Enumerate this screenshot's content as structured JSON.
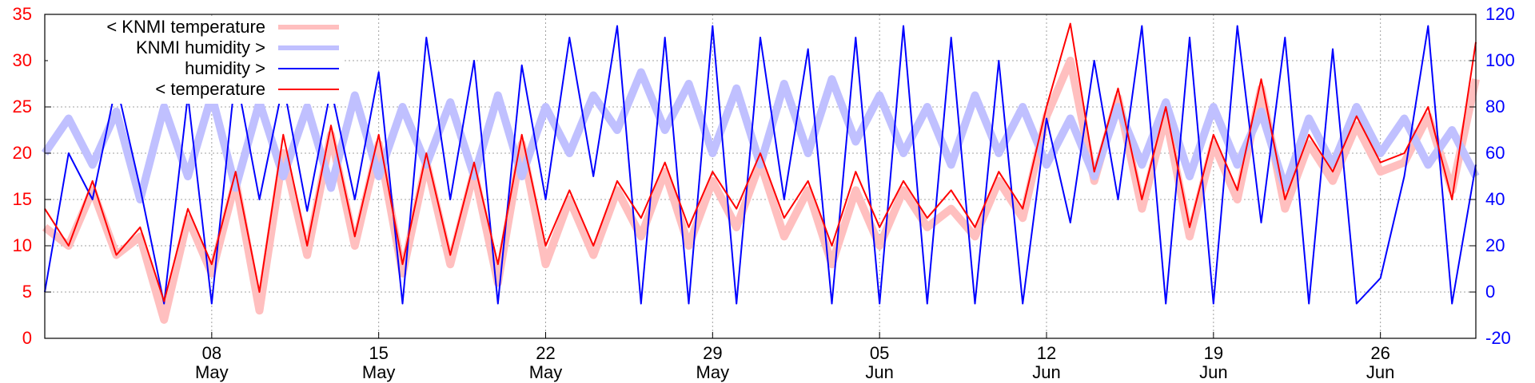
{
  "chart_data": {
    "type": "line",
    "title": "",
    "xlabel": "",
    "ylabel_left": "",
    "ylabel_right": "",
    "x_start": "2015-05-01",
    "x_end": "2015-06-30",
    "x_ticks": [
      {
        "date": "2015-05-08",
        "day": "08",
        "month": "May"
      },
      {
        "date": "2015-05-15",
        "day": "15",
        "month": "May"
      },
      {
        "date": "2015-05-22",
        "day": "22",
        "month": "May"
      },
      {
        "date": "2015-05-29",
        "day": "29",
        "month": "May"
      },
      {
        "date": "2015-06-05",
        "day": "05",
        "month": "Jun"
      },
      {
        "date": "2015-06-12",
        "day": "12",
        "month": "Jun"
      },
      {
        "date": "2015-06-19",
        "day": "19",
        "month": "Jun"
      },
      {
        "date": "2015-06-26",
        "day": "26",
        "month": "Jun"
      }
    ],
    "y_left": {
      "min": 0,
      "max": 35,
      "ticks": [
        0,
        5,
        10,
        15,
        20,
        25,
        30,
        35
      ]
    },
    "y_right": {
      "min": -20,
      "max": 120,
      "ticks": [
        -20,
        0,
        20,
        40,
        60,
        80,
        100,
        120
      ]
    },
    "grid": true,
    "legend_position": "top-left",
    "colors": {
      "knmi_temperature": "#ffbfbf",
      "knmi_humidity": "#c0c0ff",
      "humidity": "#0000ff",
      "temperature": "#ff0000",
      "left_axis": "#ff0000",
      "right_axis": "#0000ff"
    },
    "series": [
      {
        "name": "< KNMI temperature",
        "axis": "left",
        "color": "#ffbfbf",
        "points": [
          [
            "2015-05-01",
            12
          ],
          [
            "2015-05-02",
            10
          ],
          [
            "2015-05-03",
            16
          ],
          [
            "2015-05-04",
            9
          ],
          [
            "2015-05-05",
            11
          ],
          [
            "2015-05-06",
            2
          ],
          [
            "2015-05-07",
            13
          ],
          [
            "2015-05-08",
            7
          ],
          [
            "2015-05-09",
            17
          ],
          [
            "2015-05-10",
            3
          ],
          [
            "2015-05-11",
            20
          ],
          [
            "2015-05-12",
            9
          ],
          [
            "2015-05-13",
            22
          ],
          [
            "2015-05-14",
            10
          ],
          [
            "2015-05-15",
            21
          ],
          [
            "2015-05-16",
            7
          ],
          [
            "2015-05-17",
            19
          ],
          [
            "2015-05-18",
            8
          ],
          [
            "2015-05-19",
            18
          ],
          [
            "2015-05-20",
            6
          ],
          [
            "2015-05-21",
            21
          ],
          [
            "2015-05-22",
            8
          ],
          [
            "2015-05-23",
            15
          ],
          [
            "2015-05-24",
            9
          ],
          [
            "2015-05-25",
            16
          ],
          [
            "2015-05-26",
            11
          ],
          [
            "2015-05-27",
            18
          ],
          [
            "2015-05-28",
            10
          ],
          [
            "2015-05-29",
            17
          ],
          [
            "2015-05-30",
            12
          ],
          [
            "2015-05-31",
            19
          ],
          [
            "2015-06-01",
            11
          ],
          [
            "2015-06-02",
            16
          ],
          [
            "2015-06-03",
            8
          ],
          [
            "2015-06-04",
            16
          ],
          [
            "2015-06-05",
            10
          ],
          [
            "2015-06-06",
            16
          ],
          [
            "2015-06-07",
            12
          ],
          [
            "2015-06-08",
            14
          ],
          [
            "2015-06-09",
            11
          ],
          [
            "2015-06-10",
            17
          ],
          [
            "2015-06-11",
            13
          ],
          [
            "2015-06-12",
            24
          ],
          [
            "2015-06-13",
            30
          ],
          [
            "2015-06-14",
            17
          ],
          [
            "2015-06-15",
            26
          ],
          [
            "2015-06-16",
            14
          ],
          [
            "2015-06-17",
            24
          ],
          [
            "2015-06-18",
            11
          ],
          [
            "2015-06-19",
            21
          ],
          [
            "2015-06-20",
            15
          ],
          [
            "2015-06-21",
            27
          ],
          [
            "2015-06-22",
            14
          ],
          [
            "2015-06-23",
            21
          ],
          [
            "2015-06-24",
            17
          ],
          [
            "2015-06-25",
            23
          ],
          [
            "2015-06-26",
            18
          ],
          [
            "2015-06-27",
            19
          ],
          [
            "2015-06-28",
            24
          ],
          [
            "2015-06-29",
            16
          ],
          [
            "2015-06-30",
            28
          ]
        ]
      },
      {
        "name": "KNMI humidity >",
        "axis": "right",
        "color": "#c0c0ff",
        "points": [
          [
            "2015-05-01",
            60
          ],
          [
            "2015-05-02",
            75
          ],
          [
            "2015-05-03",
            55
          ],
          [
            "2015-05-04",
            78
          ],
          [
            "2015-05-05",
            40
          ],
          [
            "2015-05-06",
            80
          ],
          [
            "2015-05-07",
            50
          ],
          [
            "2015-05-08",
            85
          ],
          [
            "2015-05-09",
            45
          ],
          [
            "2015-05-10",
            82
          ],
          [
            "2015-05-11",
            50
          ],
          [
            "2015-05-12",
            80
          ],
          [
            "2015-05-13",
            45
          ],
          [
            "2015-05-14",
            85
          ],
          [
            "2015-05-15",
            50
          ],
          [
            "2015-05-16",
            80
          ],
          [
            "2015-05-17",
            55
          ],
          [
            "2015-05-18",
            82
          ],
          [
            "2015-05-19",
            50
          ],
          [
            "2015-05-20",
            85
          ],
          [
            "2015-05-21",
            50
          ],
          [
            "2015-05-22",
            80
          ],
          [
            "2015-05-23",
            60
          ],
          [
            "2015-05-24",
            85
          ],
          [
            "2015-05-25",
            70
          ],
          [
            "2015-05-26",
            95
          ],
          [
            "2015-05-27",
            70
          ],
          [
            "2015-05-28",
            90
          ],
          [
            "2015-05-29",
            60
          ],
          [
            "2015-05-30",
            88
          ],
          [
            "2015-05-31",
            55
          ],
          [
            "2015-06-01",
            90
          ],
          [
            "2015-06-02",
            60
          ],
          [
            "2015-06-03",
            92
          ],
          [
            "2015-06-04",
            65
          ],
          [
            "2015-06-05",
            85
          ],
          [
            "2015-06-06",
            60
          ],
          [
            "2015-06-07",
            80
          ],
          [
            "2015-06-08",
            55
          ],
          [
            "2015-06-09",
            85
          ],
          [
            "2015-06-10",
            60
          ],
          [
            "2015-06-11",
            80
          ],
          [
            "2015-06-12",
            55
          ],
          [
            "2015-06-13",
            75
          ],
          [
            "2015-06-14",
            50
          ],
          [
            "2015-06-15",
            80
          ],
          [
            "2015-06-16",
            55
          ],
          [
            "2015-06-17",
            82
          ],
          [
            "2015-06-18",
            50
          ],
          [
            "2015-06-19",
            80
          ],
          [
            "2015-06-20",
            55
          ],
          [
            "2015-06-21",
            78
          ],
          [
            "2015-06-22",
            45
          ],
          [
            "2015-06-23",
            75
          ],
          [
            "2015-06-24",
            55
          ],
          [
            "2015-06-25",
            80
          ],
          [
            "2015-06-26",
            60
          ],
          [
            "2015-06-27",
            75
          ],
          [
            "2015-06-28",
            55
          ],
          [
            "2015-06-29",
            70
          ],
          [
            "2015-06-30",
            50
          ]
        ]
      },
      {
        "name": "humidity >",
        "axis": "right",
        "color": "#0000ff",
        "points": [
          [
            "2015-05-01",
            0
          ],
          [
            "2015-05-02",
            60
          ],
          [
            "2015-05-03",
            40
          ],
          [
            "2015-05-04",
            90
          ],
          [
            "2015-05-05",
            45
          ],
          [
            "2015-05-06",
            -5
          ],
          [
            "2015-05-07",
            85
          ],
          [
            "2015-05-08",
            -5
          ],
          [
            "2015-05-09",
            95
          ],
          [
            "2015-05-10",
            40
          ],
          [
            "2015-05-11",
            90
          ],
          [
            "2015-05-12",
            35
          ],
          [
            "2015-05-13",
            88
          ],
          [
            "2015-05-14",
            40
          ],
          [
            "2015-05-15",
            95
          ],
          [
            "2015-05-16",
            -5
          ],
          [
            "2015-05-17",
            110
          ],
          [
            "2015-05-18",
            40
          ],
          [
            "2015-05-19",
            100
          ],
          [
            "2015-05-20",
            -5
          ],
          [
            "2015-05-21",
            98
          ],
          [
            "2015-05-22",
            40
          ],
          [
            "2015-05-23",
            110
          ],
          [
            "2015-05-24",
            50
          ],
          [
            "2015-05-25",
            115
          ],
          [
            "2015-05-26",
            -5
          ],
          [
            "2015-05-27",
            110
          ],
          [
            "2015-05-28",
            -5
          ],
          [
            "2015-05-29",
            115
          ],
          [
            "2015-05-30",
            -5
          ],
          [
            "2015-05-31",
            110
          ],
          [
            "2015-06-01",
            40
          ],
          [
            "2015-06-02",
            105
          ],
          [
            "2015-06-03",
            -5
          ],
          [
            "2015-06-04",
            110
          ],
          [
            "2015-06-05",
            -5
          ],
          [
            "2015-06-06",
            115
          ],
          [
            "2015-06-07",
            -5
          ],
          [
            "2015-06-08",
            110
          ],
          [
            "2015-06-09",
            -5
          ],
          [
            "2015-06-10",
            100
          ],
          [
            "2015-06-11",
            -5
          ],
          [
            "2015-06-12",
            75
          ],
          [
            "2015-06-13",
            30
          ],
          [
            "2015-06-14",
            100
          ],
          [
            "2015-06-15",
            40
          ],
          [
            "2015-06-16",
            115
          ],
          [
            "2015-06-17",
            -5
          ],
          [
            "2015-06-18",
            110
          ],
          [
            "2015-06-19",
            -5
          ],
          [
            "2015-06-20",
            115
          ],
          [
            "2015-06-21",
            30
          ],
          [
            "2015-06-22",
            110
          ],
          [
            "2015-06-23",
            -5
          ],
          [
            "2015-06-24",
            105
          ],
          [
            "2015-06-25",
            -5
          ],
          [
            "2015-06-26",
            6
          ],
          [
            "2015-06-27",
            50
          ],
          [
            "2015-06-28",
            115
          ],
          [
            "2015-06-29",
            -5
          ],
          [
            "2015-06-30",
            55
          ]
        ]
      },
      {
        "name": "< temperature",
        "axis": "left",
        "color": "#ff0000",
        "points": [
          [
            "2015-05-01",
            14
          ],
          [
            "2015-05-02",
            10
          ],
          [
            "2015-05-03",
            17
          ],
          [
            "2015-05-04",
            9
          ],
          [
            "2015-05-05",
            12
          ],
          [
            "2015-05-06",
            4
          ],
          [
            "2015-05-07",
            14
          ],
          [
            "2015-05-08",
            8
          ],
          [
            "2015-05-09",
            18
          ],
          [
            "2015-05-10",
            5
          ],
          [
            "2015-05-11",
            22
          ],
          [
            "2015-05-12",
            10
          ],
          [
            "2015-05-13",
            23
          ],
          [
            "2015-05-14",
            11
          ],
          [
            "2015-05-15",
            22
          ],
          [
            "2015-05-16",
            8
          ],
          [
            "2015-05-17",
            20
          ],
          [
            "2015-05-18",
            9
          ],
          [
            "2015-05-19",
            19
          ],
          [
            "2015-05-20",
            8
          ],
          [
            "2015-05-21",
            22
          ],
          [
            "2015-05-22",
            10
          ],
          [
            "2015-05-23",
            16
          ],
          [
            "2015-05-24",
            10
          ],
          [
            "2015-05-25",
            17
          ],
          [
            "2015-05-26",
            13
          ],
          [
            "2015-05-27",
            19
          ],
          [
            "2015-05-28",
            12
          ],
          [
            "2015-05-29",
            18
          ],
          [
            "2015-05-30",
            14
          ],
          [
            "2015-05-31",
            20
          ],
          [
            "2015-06-01",
            13
          ],
          [
            "2015-06-02",
            17
          ],
          [
            "2015-06-03",
            10
          ],
          [
            "2015-06-04",
            18
          ],
          [
            "2015-06-05",
            12
          ],
          [
            "2015-06-06",
            17
          ],
          [
            "2015-06-07",
            13
          ],
          [
            "2015-06-08",
            16
          ],
          [
            "2015-06-09",
            12
          ],
          [
            "2015-06-10",
            18
          ],
          [
            "2015-06-11",
            14
          ],
          [
            "2015-06-12",
            25
          ],
          [
            "2015-06-13",
            34
          ],
          [
            "2015-06-14",
            18
          ],
          [
            "2015-06-15",
            27
          ],
          [
            "2015-06-16",
            15
          ],
          [
            "2015-06-17",
            25
          ],
          [
            "2015-06-18",
            12
          ],
          [
            "2015-06-19",
            22
          ],
          [
            "2015-06-20",
            16
          ],
          [
            "2015-06-21",
            28
          ],
          [
            "2015-06-22",
            15
          ],
          [
            "2015-06-23",
            22
          ],
          [
            "2015-06-24",
            18
          ],
          [
            "2015-06-25",
            24
          ],
          [
            "2015-06-26",
            19
          ],
          [
            "2015-06-27",
            20
          ],
          [
            "2015-06-28",
            25
          ],
          [
            "2015-06-29",
            15
          ],
          [
            "2015-06-30",
            32
          ]
        ]
      }
    ],
    "legend": [
      {
        "label": "< KNMI temperature",
        "series": 0
      },
      {
        "label": "KNMI humidity >",
        "series": 1
      },
      {
        "label": "humidity >",
        "series": 2
      },
      {
        "label": "< temperature",
        "series": 3
      }
    ]
  }
}
